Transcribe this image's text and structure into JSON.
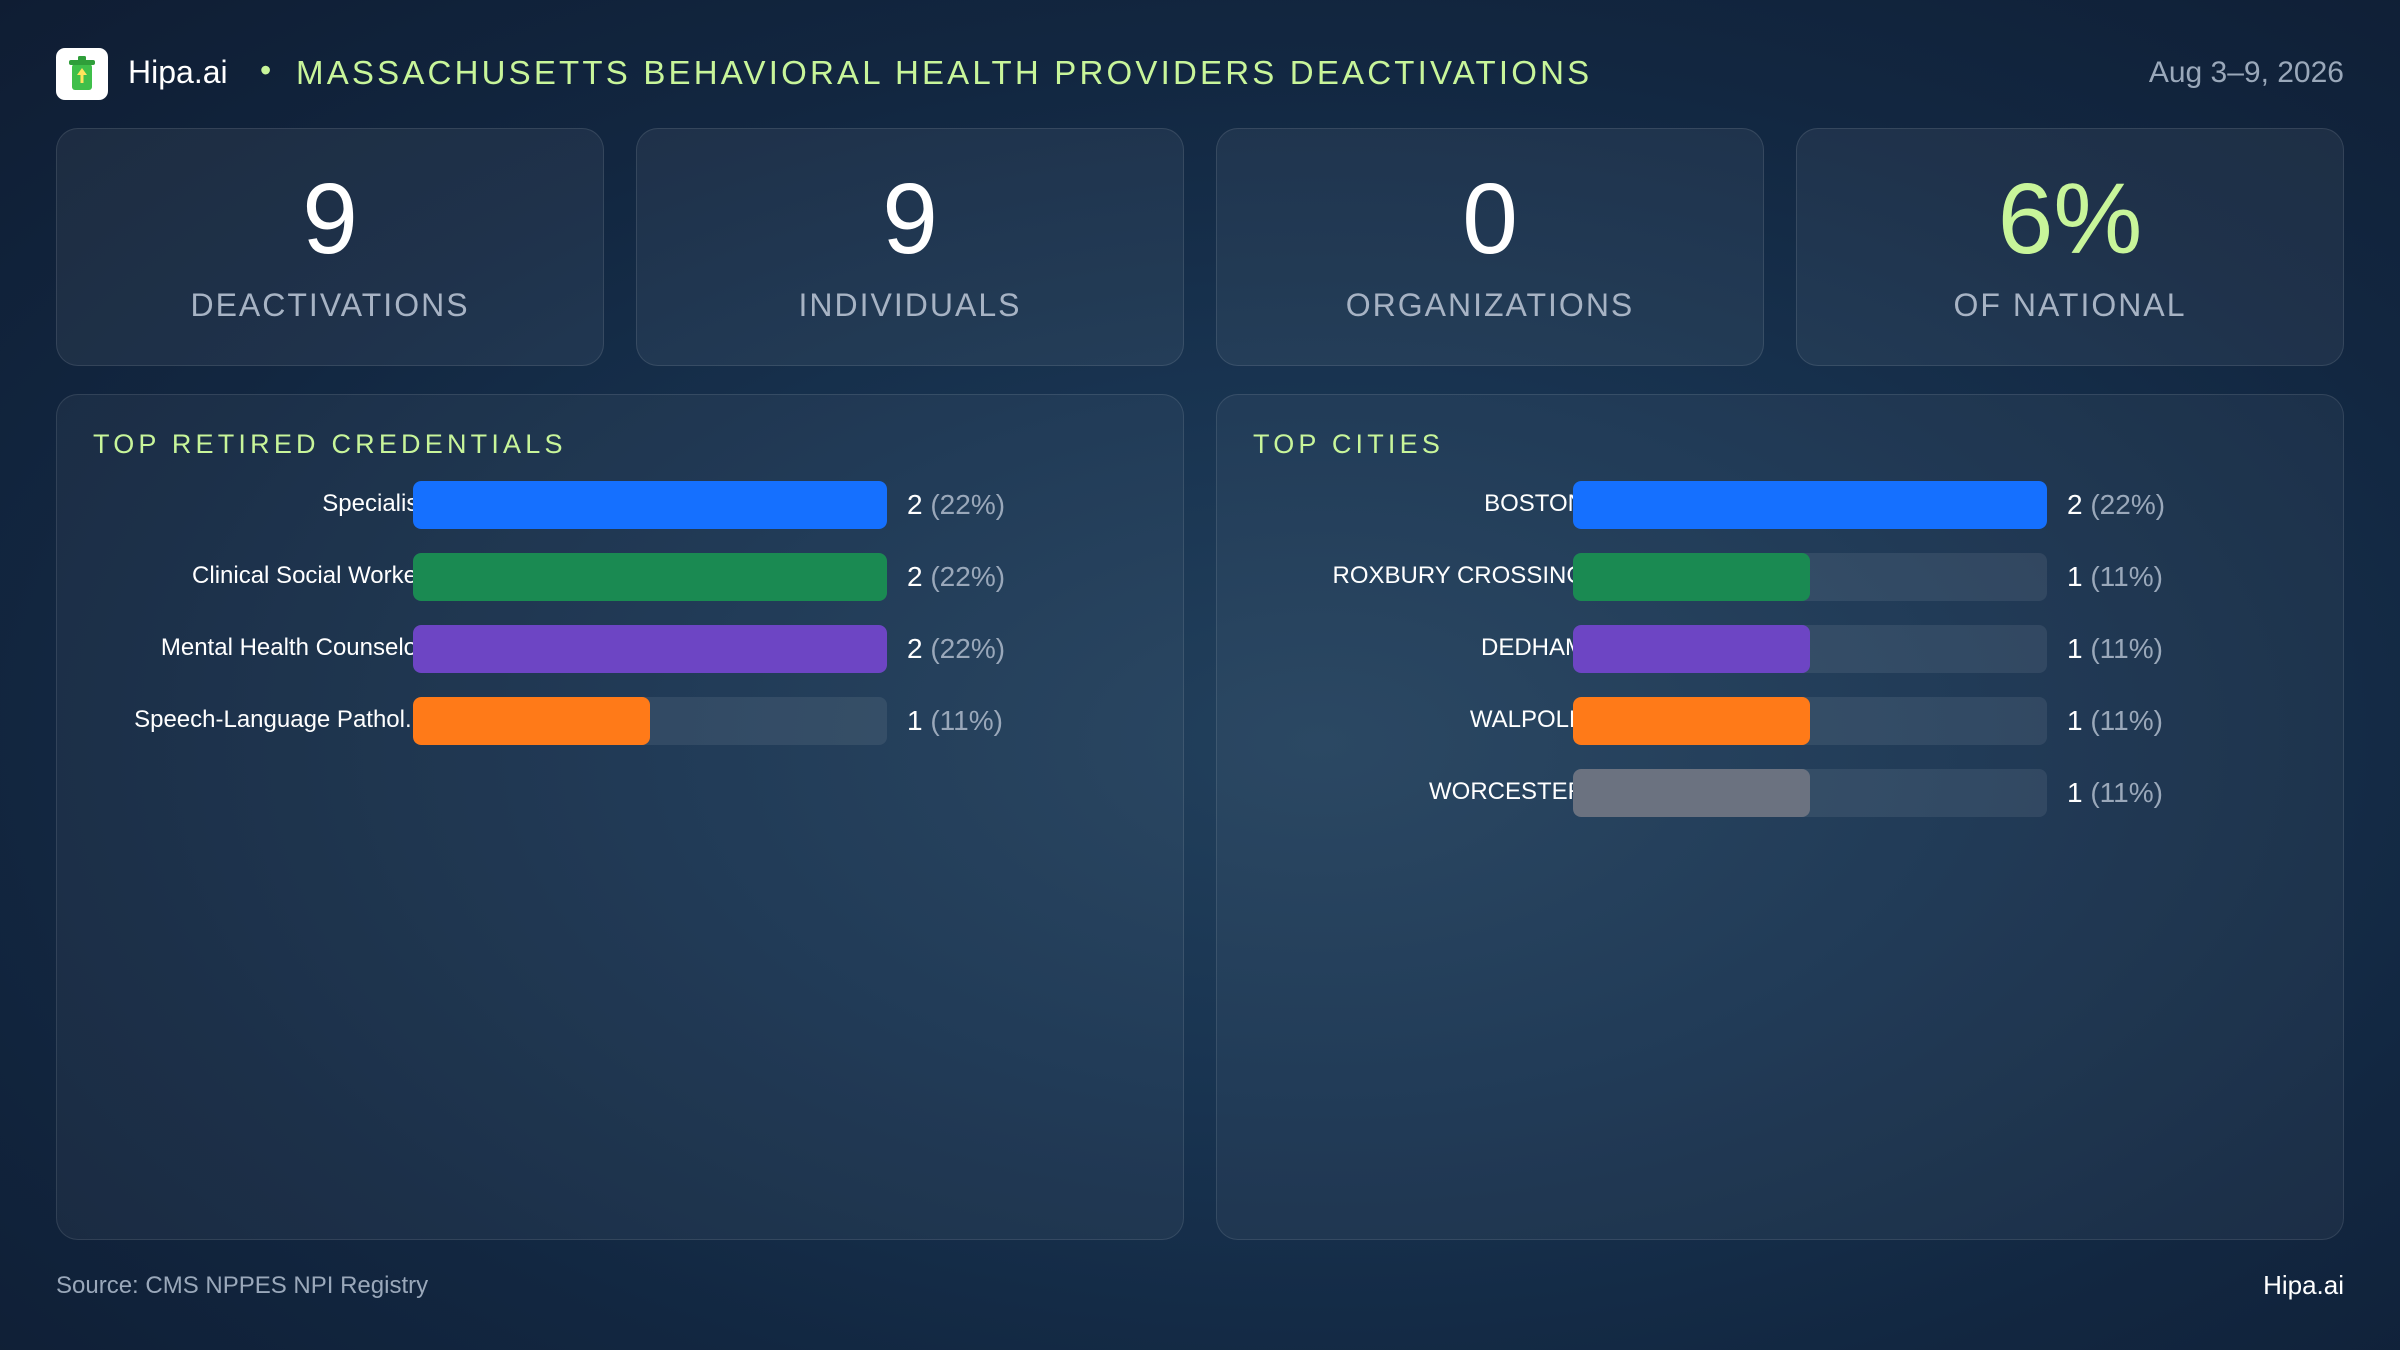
{
  "header": {
    "brand": "Hipa.ai",
    "separator": "•",
    "title": "MASSACHUSETTS BEHAVIORAL HEALTH PROVIDERS DEACTIVATIONS",
    "date_range": "Aug 3–9, 2026",
    "logo_icon": "trash-can-icon"
  },
  "kpis": [
    {
      "value": "9",
      "label": "DEACTIVATIONS",
      "color": "#ffffff"
    },
    {
      "value": "9",
      "label": "INDIVIDUALS",
      "color": "#ffffff"
    },
    {
      "value": "0",
      "label": "ORGANIZATIONS",
      "color": "#ffffff"
    },
    {
      "value": "6%",
      "label": "OF NATIONAL",
      "color": "#c8f59a"
    }
  ],
  "credentials": {
    "title": "TOP RETIRED CREDENTIALS",
    "rows": [
      {
        "label": "Specialist",
        "count": "2",
        "pct": "(22%)",
        "share": 1.0,
        "color": "#1570ff"
      },
      {
        "label": "Clinical Social Worker",
        "count": "2",
        "pct": "(22%)",
        "share": 1.0,
        "color": "#1a8a52"
      },
      {
        "label": "Mental Health Counselor",
        "count": "2",
        "pct": "(22%)",
        "share": 1.0,
        "color": "#6d45c4"
      },
      {
        "label": "Speech-Language Pathol...",
        "count": "1",
        "pct": "(11%)",
        "share": 0.5,
        "color": "#ff7a18"
      }
    ]
  },
  "cities": {
    "title": "TOP CITIES",
    "rows": [
      {
        "label": "BOSTON",
        "count": "2",
        "pct": "(22%)",
        "share": 1.0,
        "color": "#1570ff"
      },
      {
        "label": "ROXBURY CROSSING",
        "count": "1",
        "pct": "(11%)",
        "share": 0.5,
        "color": "#1a8a52"
      },
      {
        "label": "DEDHAM",
        "count": "1",
        "pct": "(11%)",
        "share": 0.5,
        "color": "#6d45c4"
      },
      {
        "label": "WALPOLE",
        "count": "1",
        "pct": "(11%)",
        "share": 0.5,
        "color": "#ff7a18"
      },
      {
        "label": "WORCESTER",
        "count": "1",
        "pct": "(11%)",
        "share": 0.5,
        "color": "#6b7280"
      }
    ]
  },
  "footer": {
    "source": "Source: CMS NPPES NPI Registry",
    "brand": "Hipa.ai"
  }
}
